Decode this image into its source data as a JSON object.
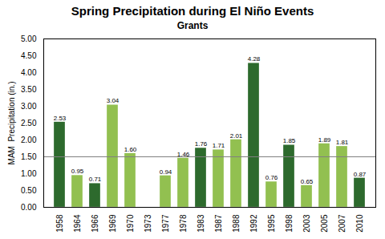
{
  "chart_data": {
    "type": "bar",
    "title": "Spring Precipitation during El Niño Events",
    "subtitle": "Grants",
    "ylabel": "MAM  Precipitation (in.)",
    "categories": [
      "1958",
      "1964",
      "1966",
      "1969",
      "1970",
      "1973",
      "1977",
      "1978",
      "1983",
      "1987",
      "1988",
      "1992",
      "1995",
      "1998",
      "2003",
      "2005",
      "2007",
      "2010"
    ],
    "values": [
      2.53,
      0.95,
      0.71,
      3.04,
      1.6,
      null,
      0.94,
      1.46,
      1.76,
      1.71,
      2.01,
      4.28,
      0.76,
      1.85,
      0.65,
      1.89,
      1.81,
      0.87
    ],
    "value_labels": [
      "2.53",
      "0.95",
      "0.71",
      "3.04",
      "1.60",
      null,
      "0.94",
      "1.46",
      "1.76",
      "1.71",
      "2.01",
      "4.28",
      "0.76",
      "1.85",
      "0.65",
      "1.89",
      "1.81",
      "0.87"
    ],
    "colors": [
      "#2d6a2d",
      "#92c050",
      "#2d6a2d",
      "#92c050",
      "#92c050",
      null,
      "#92c050",
      "#92c050",
      "#2d6a2d",
      "#92c050",
      "#92c050",
      "#2d6a2d",
      "#92c050",
      "#2d6a2d",
      "#92c050",
      "#92c050",
      "#92c050",
      "#2d6a2d"
    ],
    "reference_line": 1.5,
    "ylim": [
      0.0,
      5.0
    ],
    "yticks": [
      {
        "value": 0.0,
        "label": "0.00"
      },
      {
        "value": 0.5,
        "label": "0.50"
      },
      {
        "value": 1.0,
        "label": "1.00"
      },
      {
        "value": 1.5,
        "label": "1.50"
      },
      {
        "value": 2.0,
        "label": "2.00"
      },
      {
        "value": 2.5,
        "label": "2.50"
      },
      {
        "value": 3.0,
        "label": "3.00"
      },
      {
        "value": 3.5,
        "label": "3.50"
      },
      {
        "value": 4.0,
        "label": "4.00"
      },
      {
        "value": 4.5,
        "label": "4.50"
      },
      {
        "value": 5.0,
        "label": "5.00"
      }
    ],
    "data_labels": true,
    "grid": false
  }
}
